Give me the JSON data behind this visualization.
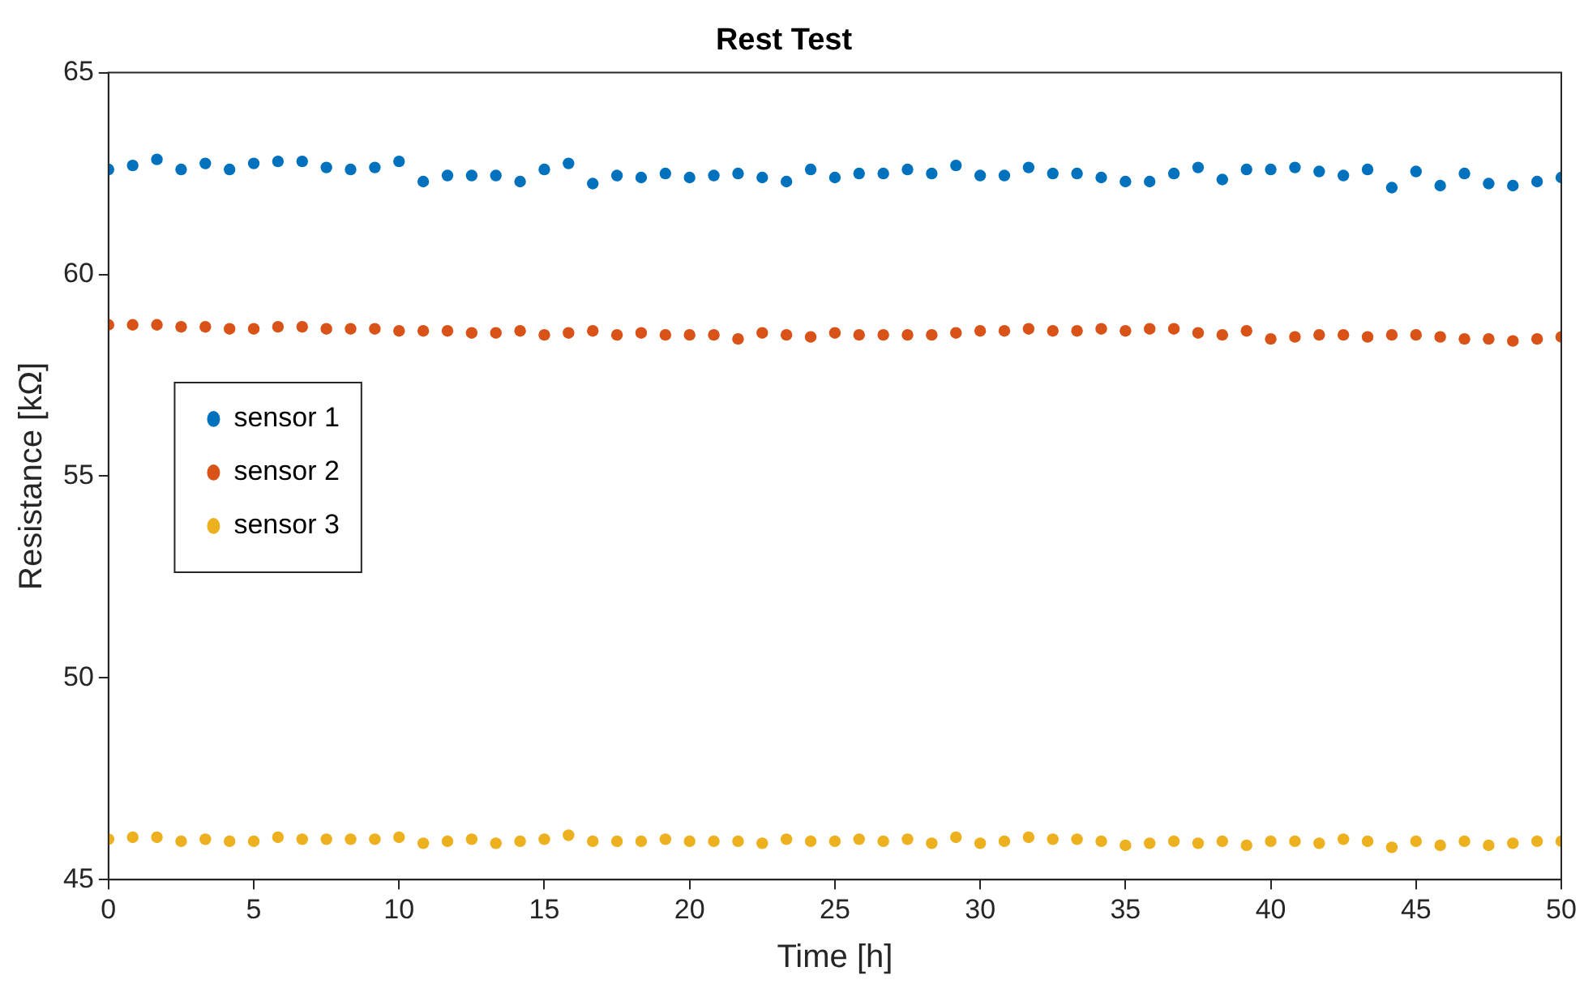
{
  "chart_data": {
    "type": "scatter",
    "title": "Rest Test",
    "xlabel": "Time [h]",
    "ylabel": "Resistance [kΩ]",
    "x": [
      0,
      0.833,
      1.667,
      2.5,
      3.333,
      4.167,
      5,
      5.833,
      6.667,
      7.5,
      8.333,
      9.167,
      10,
      10.833,
      11.667,
      12.5,
      13.333,
      14.167,
      15,
      15.833,
      16.667,
      17.5,
      18.333,
      19.167,
      20,
      20.833,
      21.667,
      22.5,
      23.333,
      24.167,
      25,
      25.833,
      26.667,
      27.5,
      28.333,
      29.167,
      30,
      30.833,
      31.667,
      32.5,
      33.333,
      34.167,
      35,
      35.833,
      36.667,
      37.5,
      38.333,
      39.167,
      40,
      40.833,
      41.667,
      42.5,
      43.333,
      44.167,
      45,
      45.833,
      46.667,
      47.5,
      48.333,
      49.167,
      50
    ],
    "series": [
      {
        "name": "sensor 1",
        "color": "#0072bd",
        "values": [
          62.6,
          62.7,
          62.85,
          62.6,
          62.75,
          62.6,
          62.75,
          62.8,
          62.8,
          62.65,
          62.6,
          62.65,
          62.8,
          62.3,
          62.45,
          62.45,
          62.45,
          62.3,
          62.6,
          62.75,
          62.25,
          62.45,
          62.4,
          62.5,
          62.4,
          62.45,
          62.5,
          62.4,
          62.3,
          62.6,
          62.4,
          62.5,
          62.5,
          62.6,
          62.5,
          62.7,
          62.45,
          62.45,
          62.65,
          62.5,
          62.5,
          62.4,
          62.3,
          62.3,
          62.5,
          62.65,
          62.35,
          62.6,
          62.6,
          62.65,
          62.55,
          62.45,
          62.6,
          62.15,
          62.55,
          62.2,
          62.5,
          62.25,
          62.2,
          62.3,
          62.4
        ]
      },
      {
        "name": "sensor 2",
        "color": "#d95319",
        "values": [
          58.75,
          58.75,
          58.75,
          58.7,
          58.7,
          58.65,
          58.65,
          58.7,
          58.7,
          58.65,
          58.65,
          58.65,
          58.6,
          58.6,
          58.6,
          58.55,
          58.55,
          58.6,
          58.5,
          58.55,
          58.6,
          58.5,
          58.55,
          58.5,
          58.5,
          58.5,
          58.4,
          58.55,
          58.5,
          58.45,
          58.55,
          58.5,
          58.5,
          58.5,
          58.5,
          58.55,
          58.6,
          58.6,
          58.65,
          58.6,
          58.6,
          58.65,
          58.6,
          58.65,
          58.65,
          58.55,
          58.5,
          58.6,
          58.4,
          58.45,
          58.5,
          58.5,
          58.45,
          58.5,
          58.5,
          58.45,
          58.4,
          58.4,
          58.35,
          58.4,
          58.45
        ]
      },
      {
        "name": "sensor 3",
        "color": "#edb120",
        "values": [
          46.0,
          46.05,
          46.05,
          45.95,
          46.0,
          45.95,
          45.95,
          46.05,
          46.0,
          46.0,
          46.0,
          46.0,
          46.05,
          45.9,
          45.95,
          46.0,
          45.9,
          45.95,
          46.0,
          46.1,
          45.95,
          45.95,
          45.95,
          46.0,
          45.95,
          45.95,
          45.95,
          45.9,
          46.0,
          45.95,
          45.95,
          46.0,
          45.95,
          46.0,
          45.9,
          46.05,
          45.9,
          45.95,
          46.05,
          46.0,
          46.0,
          45.95,
          45.85,
          45.9,
          45.95,
          45.9,
          45.95,
          45.85,
          45.95,
          45.95,
          45.9,
          46.0,
          45.95,
          45.8,
          45.95,
          45.85,
          45.95,
          45.85,
          45.9,
          45.95,
          45.95
        ]
      }
    ],
    "xlim": [
      0,
      50
    ],
    "xticks": [
      0,
      5,
      10,
      15,
      20,
      25,
      30,
      35,
      40,
      45,
      50
    ],
    "ylim": [
      45,
      65
    ],
    "yticks": [
      45,
      50,
      55,
      60,
      65
    ],
    "grid": false,
    "legend": "left",
    "marker": "circle"
  }
}
